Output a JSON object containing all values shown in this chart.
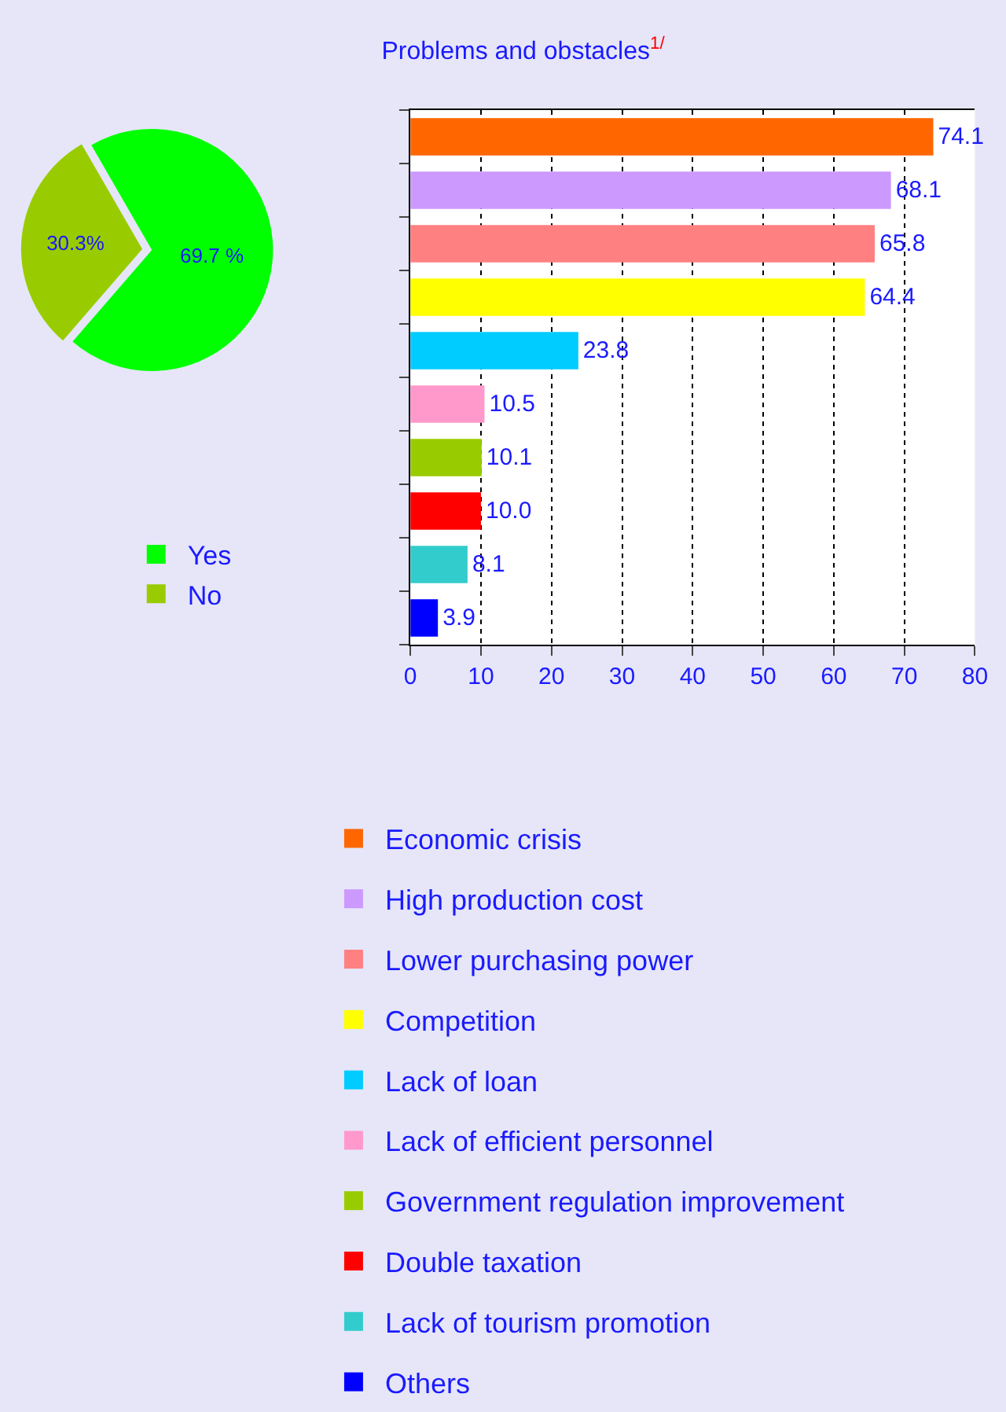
{
  "chart_data": [
    {
      "type": "pie",
      "categories": [
        "Yes",
        "No"
      ],
      "values": [
        69.7,
        30.3
      ],
      "colors": [
        "#00ff00",
        "#99cc00"
      ],
      "value_labels": [
        "69.7 %",
        "30.3%"
      ],
      "legend": "bottom"
    },
    {
      "type": "bar",
      "orientation": "horizontal",
      "title": "Problems and obstacles$^{1/}$",
      "categories": [
        null,
        null,
        null,
        null,
        null,
        null,
        null,
        null,
        null,
        null
      ],
      "series": [
        {
          "name": "Economic crisis",
          "color": "#ff6600",
          "values": [
            74.1,
            null,
            null,
            null,
            null,
            null,
            null,
            null,
            null,
            null
          ],
          "value_labels": [
            "74.1",
            null,
            null,
            null,
            null,
            null,
            null,
            null,
            null,
            null
          ]
        },
        {
          "name": "High production cost",
          "color": "#cc99ff",
          "values": [
            null,
            68.1,
            null,
            null,
            null,
            null,
            null,
            null,
            null,
            null
          ],
          "value_labels": [
            null,
            "68.1",
            null,
            null,
            null,
            null,
            null,
            null,
            null,
            null
          ]
        },
        {
          "name": "Lower purchasing power",
          "color": "#ff8080",
          "values": [
            null,
            null,
            65.8,
            null,
            null,
            null,
            null,
            null,
            null,
            null
          ],
          "value_labels": [
            null,
            null,
            "65.8",
            null,
            null,
            null,
            null,
            null,
            null,
            null
          ]
        },
        {
          "name": "Competition",
          "color": "#ffff00",
          "values": [
            null,
            null,
            null,
            64.4,
            null,
            null,
            null,
            null,
            null,
            null
          ],
          "value_labels": [
            null,
            null,
            null,
            "64.4",
            null,
            null,
            null,
            null,
            null,
            null
          ]
        },
        {
          "name": "Lack of loan",
          "color": "#00ccff",
          "values": [
            null,
            null,
            null,
            null,
            23.8,
            null,
            null,
            null,
            null,
            null
          ],
          "value_labels": [
            null,
            null,
            null,
            null,
            "23.8",
            null,
            null,
            null,
            null,
            null
          ]
        },
        {
          "name": "Lack of efficient personnel",
          "color": "#ff99cc",
          "values": [
            null,
            null,
            null,
            null,
            null,
            10.5,
            null,
            null,
            null,
            null
          ],
          "value_labels": [
            null,
            null,
            null,
            null,
            null,
            "10.5",
            null,
            null,
            null,
            null
          ]
        },
        {
          "name": "Government regulation improvement",
          "color": "#99cc00",
          "values": [
            null,
            null,
            null,
            null,
            null,
            null,
            10.1,
            null,
            null,
            null
          ],
          "value_labels": [
            null,
            null,
            null,
            null,
            null,
            null,
            "10.1",
            null,
            null,
            null
          ]
        },
        {
          "name": "Double taxation",
          "color": "#ff0000",
          "values": [
            null,
            null,
            null,
            null,
            null,
            null,
            null,
            10.0,
            null,
            null
          ],
          "value_labels": [
            null,
            null,
            null,
            null,
            null,
            null,
            null,
            "10.0",
            null,
            null
          ]
        },
        {
          "name": "Lack of tourism promotion",
          "color": "#33cccc",
          "values": [
            null,
            null,
            null,
            null,
            null,
            null,
            null,
            null,
            8.1,
            null
          ],
          "value_labels": [
            null,
            null,
            null,
            null,
            null,
            null,
            null,
            null,
            "8.1",
            null
          ]
        },
        {
          "name": "Others",
          "color": "#0000ff",
          "values": [
            null,
            null,
            null,
            null,
            null,
            null,
            null,
            null,
            null,
            3.9
          ],
          "value_labels": [
            null,
            null,
            null,
            null,
            null,
            null,
            null,
            null,
            null,
            "3.9"
          ]
        }
      ],
      "xlim": [
        0,
        80
      ],
      "xticks": [
        0,
        10,
        20,
        30,
        40,
        50,
        60,
        70,
        80
      ],
      "grid": "x",
      "tick_labels": "x",
      "legend": "bottom"
    }
  ]
}
